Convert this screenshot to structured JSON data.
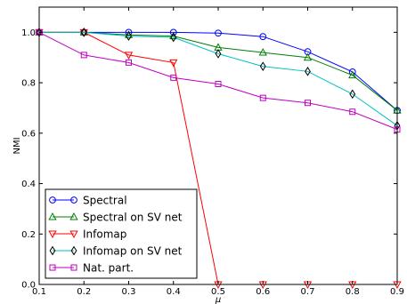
{
  "chart_data": {
    "type": "line",
    "title": "",
    "xlabel": "μ",
    "ylabel": "NMI",
    "xlim": [
      0.1,
      0.9
    ],
    "ylim": [
      0.0,
      1.1
    ],
    "x": [
      0.1,
      0.2,
      0.3,
      0.4,
      0.5,
      0.6,
      0.7,
      0.8,
      0.9
    ],
    "x_ticks": [
      "0.1",
      "0.2",
      "0.3",
      "0.4",
      "0.5",
      "0.6",
      "0.7",
      "0.8",
      "0.9"
    ],
    "y_ticks": [
      "0.0",
      "0.2",
      "0.4",
      "0.6",
      "0.8",
      "1.0"
    ],
    "grid": false,
    "legend_position": "bottom-left",
    "series": [
      {
        "name": "Spectral",
        "color": "#0000ff",
        "marker": "circle",
        "values": [
          1.0,
          1.0,
          1.0,
          1.0,
          0.997,
          0.983,
          0.923,
          0.843,
          0.69
        ]
      },
      {
        "name": "Spectral on SV net",
        "color": "#007f00",
        "marker": "triangle-up",
        "values": [
          1.0,
          1.0,
          0.99,
          0.985,
          0.94,
          0.92,
          0.9,
          0.83,
          0.69
        ]
      },
      {
        "name": "Infomap",
        "color": "#ff0000",
        "marker": "triangle-down",
        "values": [
          1.0,
          1.0,
          0.91,
          0.88,
          0.0,
          0.0,
          0.0,
          0.0,
          0.0
        ]
      },
      {
        "name": "Infomap on SV net",
        "color": "#00bfbf",
        "marker": "diamond",
        "values": [
          1.0,
          1.0,
          0.985,
          0.98,
          0.915,
          0.865,
          0.845,
          0.755,
          0.63
        ]
      },
      {
        "name": "Nat. part.",
        "color": "#bf00bf",
        "marker": "square",
        "values": [
          1.0,
          0.91,
          0.88,
          0.82,
          0.795,
          0.74,
          0.72,
          0.685,
          0.615
        ]
      }
    ]
  }
}
